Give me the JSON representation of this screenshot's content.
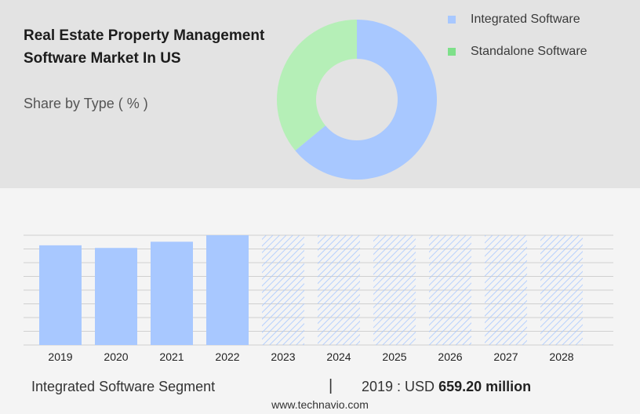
{
  "title": "Real Estate Property Management Software Market In US",
  "subtitle": "Share by Type ( % )",
  "legend": [
    {
      "label": "Integrated Software",
      "color": "#a8c8ff"
    },
    {
      "label": "Standalone Software",
      "color": "#7ee08a"
    }
  ],
  "chart_data": [
    {
      "type": "pie",
      "style": "donut",
      "categories": [
        "Integrated Software",
        "Standalone Software"
      ],
      "values": [
        64,
        36
      ],
      "colors": [
        "#a8c8ff",
        "#b5efb7"
      ]
    },
    {
      "type": "bar",
      "categories": [
        "2019",
        "2020",
        "2021",
        "2022",
        "2023",
        "2024",
        "2025",
        "2026",
        "2027",
        "2028"
      ],
      "values": [
        659.2,
        642,
        683,
        726,
        726,
        726,
        726,
        726,
        726,
        726
      ],
      "forecast_from": "2023",
      "unit": "USD million",
      "bar_color": "#a8c8ff",
      "grid": true
    }
  ],
  "footer": {
    "segment": "Integrated Software Segment",
    "separator": "|",
    "year_label": "2019 : USD",
    "value": "659.20 million"
  },
  "source": "www.technavio.com"
}
